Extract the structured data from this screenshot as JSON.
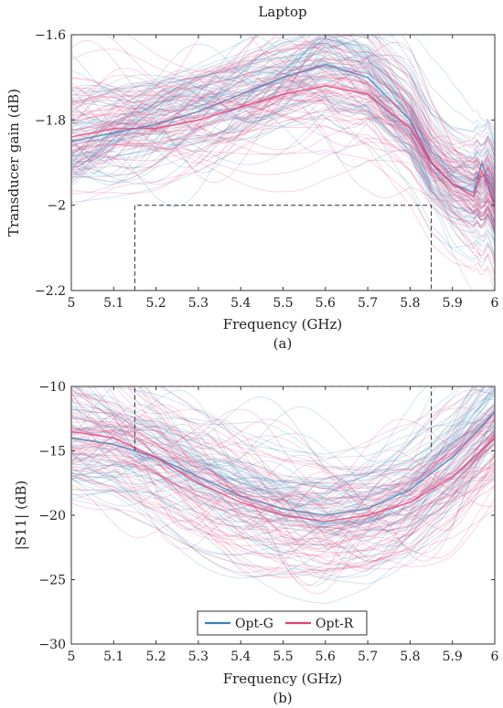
{
  "colors": {
    "opt_g": "#3b82b8",
    "opt_r": "#e0407a",
    "frame": "#333333",
    "spec": "#444444"
  },
  "chart_data": [
    {
      "type": "line",
      "title": "Laptop",
      "caption": "(a)",
      "xlabel": "Frequency (GHz)",
      "ylabel": "Transducer gain (dB)",
      "xlim": [
        5,
        6
      ],
      "ylim": [
        -2.2,
        -1.6
      ],
      "x_ticks": [
        "5",
        "5.1",
        "5.2",
        "5.3",
        "5.4",
        "5.5",
        "5.6",
        "5.7",
        "5.8",
        "5.9",
        "6"
      ],
      "y_ticks": [
        "-1.6",
        "-1.8",
        "-2",
        "-2.2"
      ],
      "spec_box": {
        "x": [
          5.15,
          5.85
        ],
        "y_bottom": -2.2,
        "y_top": -2.0
      },
      "series": [
        {
          "name": "Opt-G",
          "style": "many translucent realizations",
          "representative": {
            "x": [
              5,
              5.1,
              5.2,
              5.3,
              5.4,
              5.5,
              5.6,
              5.7,
              5.8,
              5.85,
              5.9,
              5.95,
              5.97,
              6
            ],
            "y": [
              -1.85,
              -1.83,
              -1.81,
              -1.78,
              -1.74,
              -1.7,
              -1.67,
              -1.7,
              -1.8,
              -1.9,
              -1.95,
              -1.97,
              -1.9,
              -2.0
            ]
          }
        },
        {
          "name": "Opt-R",
          "style": "many translucent realizations",
          "representative": {
            "x": [
              5,
              5.1,
              5.2,
              5.3,
              5.4,
              5.5,
              5.6,
              5.7,
              5.8,
              5.85,
              5.9,
              5.95,
              5.97,
              6
            ],
            "y": [
              -1.84,
              -1.82,
              -1.82,
              -1.8,
              -1.77,
              -1.74,
              -1.72,
              -1.74,
              -1.82,
              -1.9,
              -1.95,
              -1.98,
              -1.92,
              -2.0
            ]
          }
        }
      ]
    },
    {
      "type": "line",
      "caption": "(b)",
      "xlabel": "Frequency (GHz)",
      "ylabel": "|S11| (dB)",
      "xlim": [
        5,
        6
      ],
      "ylim": [
        -30,
        -10
      ],
      "x_ticks": [
        "5",
        "5.1",
        "5.2",
        "5.3",
        "5.4",
        "5.5",
        "5.6",
        "5.7",
        "5.8",
        "5.9",
        "6"
      ],
      "y_ticks": [
        "-10",
        "-15",
        "-20",
        "-25",
        "-30"
      ],
      "spec_box": {
        "x": [
          5.15,
          5.85
        ],
        "y_top": -10,
        "y_bottom": -15
      },
      "legend": {
        "position": "lower center",
        "entries": [
          "Opt-G",
          "Opt-R"
        ]
      },
      "series": [
        {
          "name": "Opt-G",
          "style": "many translucent realizations",
          "representative": {
            "x": [
              5,
              5.1,
              5.2,
              5.3,
              5.4,
              5.5,
              5.6,
              5.7,
              5.8,
              5.9,
              6
            ],
            "y": [
              -14,
              -14.5,
              -15.5,
              -17,
              -18.5,
              -19.5,
              -20,
              -19.5,
              -18,
              -15.5,
              -12
            ]
          }
        },
        {
          "name": "Opt-R",
          "style": "many translucent realizations",
          "representative": {
            "x": [
              5,
              5.1,
              5.2,
              5.3,
              5.4,
              5.5,
              5.6,
              5.7,
              5.8,
              5.9,
              6
            ],
            "y": [
              -13.5,
              -14,
              -15.5,
              -17.5,
              -19,
              -20,
              -20.5,
              -20,
              -19,
              -17,
              -14
            ]
          }
        }
      ]
    }
  ]
}
